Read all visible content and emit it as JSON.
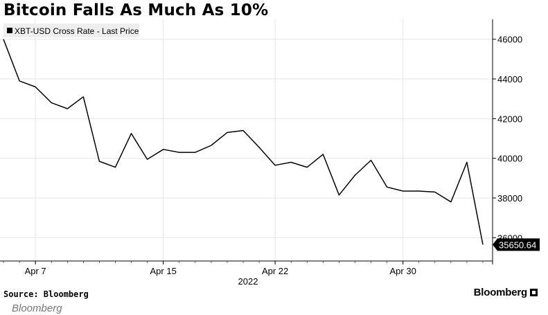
{
  "chart_data": {
    "type": "line",
    "title": "Bitcoin Falls As Much As 10%",
    "legend": "XBT-USD Cross Rate - Last Price",
    "legend_position": "top-left",
    "x_tick_labels": [
      "Apr 7",
      "Apr 15",
      "Apr 22",
      "Apr 30"
    ],
    "x_tick_indices": [
      2,
      10,
      17,
      25
    ],
    "xlabel": "2022",
    "ylim": [
      35000,
      47000
    ],
    "y_ticks": [
      36000,
      38000,
      40000,
      42000,
      44000,
      46000
    ],
    "y_tick_labels": [
      "36000",
      "38000",
      "40000",
      "42000",
      "44000",
      "46000"
    ],
    "y_axis_side": "right",
    "grid": true,
    "last_value_label": "35650.64",
    "series": [
      {
        "name": "XBT-USD Cross Rate - Last Price",
        "values": [
          46000,
          43900,
          43600,
          42800,
          42500,
          43100,
          39850,
          39550,
          41250,
          39950,
          40450,
          40300,
          40300,
          40650,
          41300,
          41400,
          40550,
          39650,
          39800,
          39550,
          40200,
          38150,
          39150,
          39900,
          38550,
          38350,
          38350,
          38300,
          37800,
          39800,
          35650.64
        ]
      }
    ]
  },
  "footer": {
    "source": "Source: Bloomberg",
    "brand": "Bloomberg"
  },
  "caption": "Bloomberg"
}
